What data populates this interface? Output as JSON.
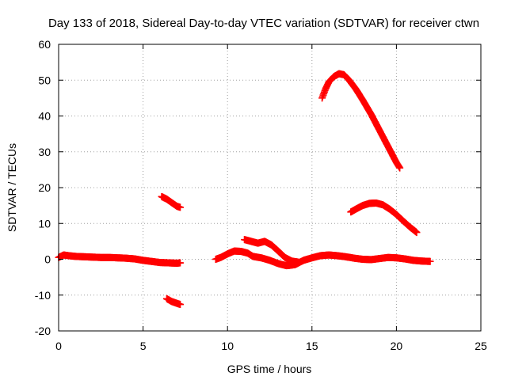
{
  "chart_data": {
    "type": "scatter",
    "title": "Day 133 of 2018, Sidereal Day-to-day VTEC variation (SDTVAR) for receiver ctwn",
    "xlabel": "GPS time / hours",
    "ylabel": "SDTVAR / TECUs",
    "xlim": [
      0,
      25
    ],
    "ylim": [
      -20,
      60
    ],
    "xticks": [
      0,
      5,
      10,
      15,
      20,
      25
    ],
    "yticks": [
      -20,
      -10,
      0,
      10,
      20,
      30,
      40,
      50,
      60
    ],
    "xtick_labels": [
      "0",
      "5",
      "10",
      "15",
      "20",
      "25"
    ],
    "ytick_labels": [
      "-20",
      "-10",
      "0",
      "10",
      "20",
      "30",
      "40",
      "50",
      "60"
    ],
    "grid": true,
    "marker": "plus",
    "color": "#ff0000",
    "series": [
      {
        "name": "segment-1",
        "x": [
          0.0,
          0.3,
          0.6,
          1.0,
          1.5,
          2.0,
          2.5,
          3.0,
          3.5,
          4.0,
          4.5,
          5.0,
          5.5,
          6.0,
          6.5,
          7.0,
          7.2
        ],
        "y": [
          0.5,
          1.2,
          1.0,
          0.8,
          0.7,
          0.6,
          0.5,
          0.5,
          0.4,
          0.3,
          0.1,
          -0.3,
          -0.6,
          -0.9,
          -1.0,
          -1.1,
          -1.0
        ]
      },
      {
        "name": "segment-2",
        "x": [
          6.1,
          6.4,
          6.7,
          7.0,
          7.2
        ],
        "y": [
          17.5,
          16.8,
          15.8,
          14.8,
          14.5
        ]
      },
      {
        "name": "segment-3",
        "x": [
          6.4,
          6.7,
          7.0,
          7.2
        ],
        "y": [
          -11.0,
          -11.8,
          -12.3,
          -12.6
        ]
      },
      {
        "name": "segment-4",
        "x": [
          9.3,
          9.6,
          10.0,
          10.4,
          10.8,
          11.2,
          11.5,
          12.0,
          12.5,
          13.0,
          13.5,
          14.0,
          14.5,
          15.0,
          15.5,
          16.0,
          16.5,
          17.0,
          17.5,
          18.0,
          18.5,
          19.0,
          19.5,
          20.0,
          20.5,
          21.0,
          21.5,
          22.0
        ],
        "y": [
          0.0,
          0.5,
          1.5,
          2.3,
          2.2,
          1.7,
          0.8,
          0.4,
          -0.3,
          -1.2,
          -1.8,
          -1.5,
          -0.3,
          0.4,
          1.0,
          1.2,
          1.0,
          0.7,
          0.3,
          0.0,
          -0.1,
          0.2,
          0.5,
          0.4,
          0.1,
          -0.3,
          -0.5,
          -0.6
        ]
      },
      {
        "name": "segment-5",
        "x": [
          11.0,
          11.4,
          11.8,
          12.2,
          12.6,
          13.0,
          13.4,
          13.8,
          14.2
        ],
        "y": [
          5.5,
          5.0,
          4.5,
          5.0,
          4.0,
          2.3,
          0.5,
          -0.5,
          -0.8
        ]
      },
      {
        "name": "segment-6",
        "x": [
          15.6,
          15.8,
          16.0,
          16.3,
          16.6,
          16.9,
          17.2,
          17.6,
          18.0,
          18.5,
          19.0,
          19.5,
          20.0,
          20.2
        ],
        "y": [
          45.0,
          47.5,
          49.5,
          51.0,
          51.8,
          51.5,
          50.0,
          47.5,
          44.5,
          40.5,
          36.0,
          31.5,
          27.0,
          25.5
        ]
      },
      {
        "name": "segment-7",
        "x": [
          17.3,
          17.6,
          18.0,
          18.4,
          18.8,
          19.2,
          19.6,
          20.0,
          20.4,
          20.8,
          21.2
        ],
        "y": [
          13.2,
          14.0,
          15.0,
          15.6,
          15.7,
          15.2,
          14.0,
          12.5,
          10.7,
          9.0,
          7.5
        ]
      }
    ]
  }
}
